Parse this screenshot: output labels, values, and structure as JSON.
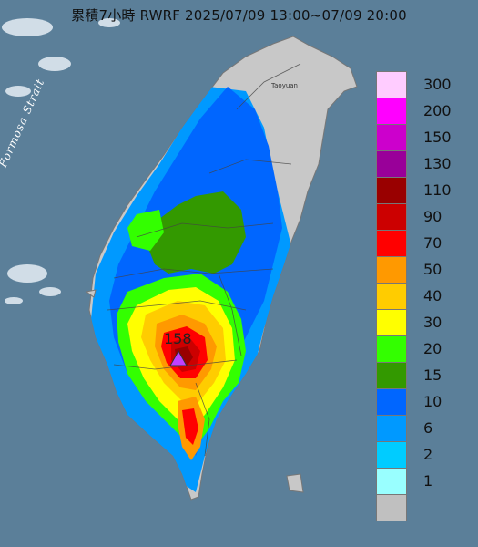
{
  "title": "累積7小時 RWRF 2025/07/09 13:00~07/09 20:00",
  "strait_label": "Formosa Strait",
  "city_labels": [
    "Taoyuan"
  ],
  "peak_value": "158",
  "legend": [
    {
      "label": "300",
      "color": "#ffccff"
    },
    {
      "label": "200",
      "color": "#ff00ff"
    },
    {
      "label": "150",
      "color": "#cc00cc"
    },
    {
      "label": "130",
      "color": "#990099"
    },
    {
      "label": "110",
      "color": "#990000"
    },
    {
      "label": "90",
      "color": "#cc0000"
    },
    {
      "label": "70",
      "color": "#ff0000"
    },
    {
      "label": "50",
      "color": "#ff9900"
    },
    {
      "label": "40",
      "color": "#ffcc00"
    },
    {
      "label": "30",
      "color": "#ffff00"
    },
    {
      "label": "20",
      "color": "#33ff00"
    },
    {
      "label": "15",
      "color": "#339900"
    },
    {
      "label": "10",
      "color": "#0066ff"
    },
    {
      "label": "6",
      "color": "#0099ff"
    },
    {
      "label": "2",
      "color": "#00ccff"
    },
    {
      "label": "1",
      "color": "#99ffff"
    },
    {
      "label": "",
      "color": "#c0c0c0"
    }
  ],
  "colors": {
    "sea": "#5b7f99",
    "land": "#c8c8c8",
    "marker": "#c040ff"
  }
}
